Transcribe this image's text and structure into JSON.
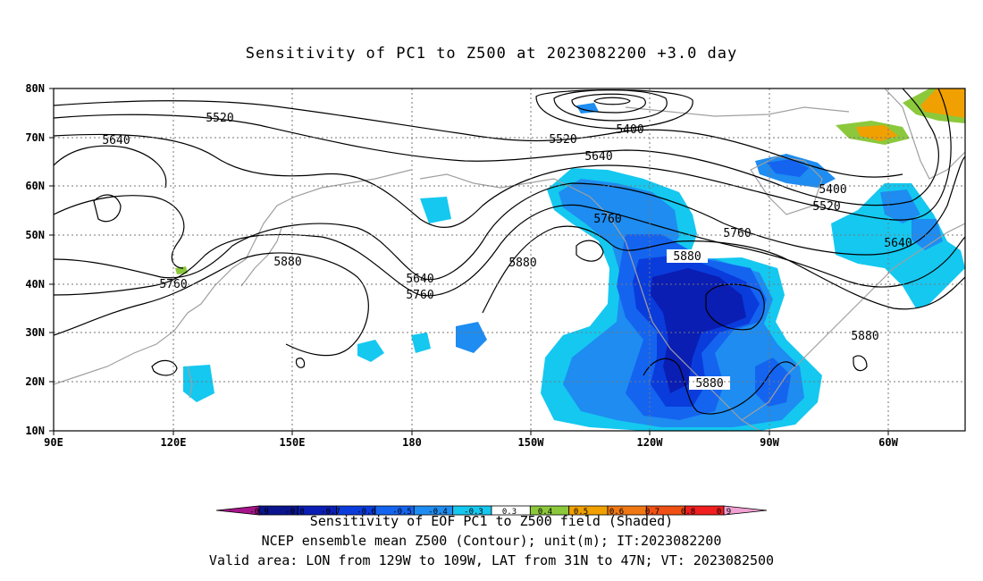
{
  "title": "Sensitivity of PC1 to Z500 at 2023082200 +3.0 day",
  "lat_labels": [
    "80N",
    "70N",
    "60N",
    "50N",
    "40N",
    "30N",
    "20N",
    "10N"
  ],
  "lon_labels": [
    "90E",
    "120E",
    "150E",
    "180",
    "150W",
    "120W",
    "90W",
    "60W"
  ],
  "contour_labels": [
    {
      "text": "5520"
    },
    {
      "text": "5640"
    },
    {
      "text": "5400"
    },
    {
      "text": "5520"
    },
    {
      "text": "5640"
    },
    {
      "text": "5400"
    },
    {
      "text": "5520"
    },
    {
      "text": "5760"
    },
    {
      "text": "5640"
    },
    {
      "text": "5760"
    },
    {
      "text": "5880"
    },
    {
      "text": "5880"
    },
    {
      "text": "5880"
    },
    {
      "text": "5640"
    },
    {
      "text": "5760"
    },
    {
      "text": "5760"
    },
    {
      "text": "5880"
    },
    {
      "text": "5880"
    }
  ],
  "colorbar": {
    "ticks": [
      "-0.9",
      "-0.8",
      "-0.7",
      "-0.6",
      "-0.5",
      "-0.4",
      "-0.3",
      "0.3",
      "0.4",
      "0.5",
      "0.6",
      "0.7",
      "0.8",
      "0.9"
    ],
    "colors": [
      "#a6148a",
      "#0a148c",
      "#0a1eb4",
      "#0a3cdc",
      "#1464f0",
      "#1e8cf0",
      "#14c8f0",
      "#ffffff",
      "#8cc83c",
      "#f0a000",
      "#f07814",
      "#f05014",
      "#f01e1e",
      "#f0a0d2"
    ]
  },
  "caption": {
    "line1": "Sensitivity of EOF PC1 to Z500 field (Shaded)",
    "line2": "NCEP ensemble mean Z500 (Contour); unit(m); IT:2023082200",
    "line3": "Valid area: LON from 129W to 109W, LAT from 31N to 47N; VT: 2023082500"
  }
}
